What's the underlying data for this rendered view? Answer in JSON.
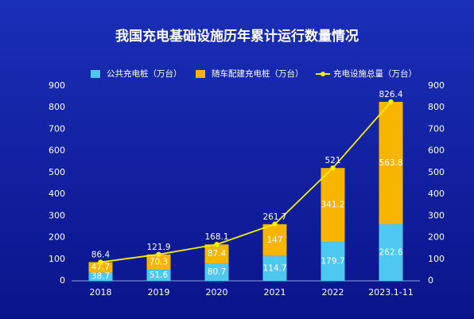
{
  "chart_data": {
    "type": "bar-line",
    "title": "我国充电基础设施历年累计运行数量情况",
    "categories": [
      "2018",
      "2019",
      "2020",
      "2021",
      "2022",
      "2023.1-11"
    ],
    "series": [
      {
        "name": "公共充电桩（万台）",
        "color": "#4fc8f0",
        "type": "bar",
        "values": [
          38.7,
          51.6,
          80.7,
          114.7,
          179.7,
          262.6
        ]
      },
      {
        "name": "随车配建充电桩（万台）",
        "color": "#f7b500",
        "type": "bar",
        "values": [
          47.7,
          70.3,
          87.4,
          147,
          341.2,
          563.8
        ]
      },
      {
        "name": "充电设施总量（万台）",
        "color": "#f5f000",
        "type": "line",
        "axis": "y2",
        "values": [
          86.4,
          121.9,
          168.1,
          261.7,
          521,
          826.4
        ]
      }
    ],
    "ylim": [
      0,
      900
    ],
    "yticks": [
      0,
      100,
      200,
      300,
      400,
      500,
      600,
      700,
      800,
      900
    ],
    "y2lim": [
      0,
      900
    ],
    "y2ticks": [
      0,
      100,
      200,
      300,
      400,
      500,
      600,
      700,
      800,
      900
    ],
    "stacked": true
  }
}
